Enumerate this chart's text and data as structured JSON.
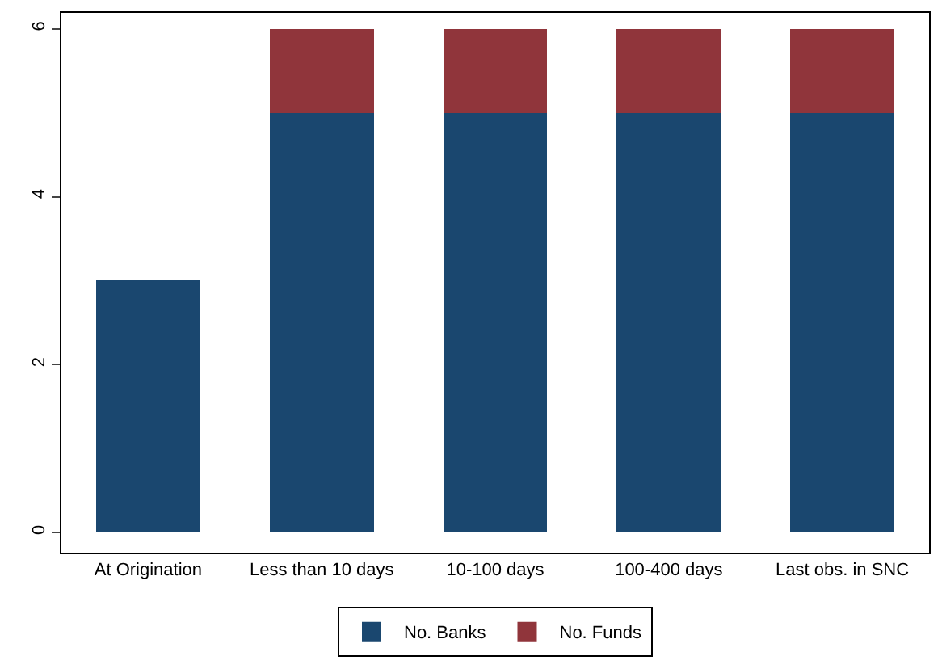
{
  "chart_data": {
    "type": "bar",
    "stacked": true,
    "categories": [
      "At Origination",
      "Less than 10 days",
      "10-100 days",
      "100-400 days",
      "Last obs. in SNC"
    ],
    "series": [
      {
        "name": "No. Banks",
        "color": "#1a476f",
        "values": [
          3,
          5,
          5,
          5,
          5
        ]
      },
      {
        "name": "No. Funds",
        "color": "#90353b",
        "values": [
          0,
          1,
          1,
          1,
          1
        ]
      }
    ],
    "ylim": [
      -0.24,
      6.19
    ],
    "yticks": [
      0,
      2,
      4,
      6
    ],
    "grid": false,
    "legend": "bottom"
  }
}
